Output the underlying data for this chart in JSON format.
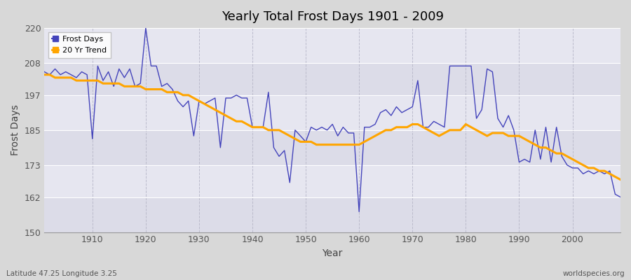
{
  "title": "Yearly Total Frost Days 1901 - 2009",
  "xlabel": "Year",
  "ylabel": "Frost Days",
  "lat_lon_label": "Latitude 47.25 Longitude 3.25",
  "watermark": "worldspecies.org",
  "years": [
    1901,
    1902,
    1903,
    1904,
    1905,
    1906,
    1907,
    1908,
    1909,
    1910,
    1911,
    1912,
    1913,
    1914,
    1915,
    1916,
    1917,
    1918,
    1919,
    1920,
    1921,
    1922,
    1923,
    1924,
    1925,
    1926,
    1927,
    1928,
    1929,
    1930,
    1931,
    1932,
    1933,
    1934,
    1935,
    1936,
    1937,
    1938,
    1939,
    1940,
    1941,
    1942,
    1943,
    1944,
    1945,
    1946,
    1947,
    1948,
    1949,
    1950,
    1951,
    1952,
    1953,
    1954,
    1955,
    1956,
    1957,
    1958,
    1959,
    1960,
    1961,
    1962,
    1963,
    1964,
    1965,
    1966,
    1967,
    1968,
    1969,
    1970,
    1971,
    1972,
    1973,
    1974,
    1975,
    1976,
    1977,
    1978,
    1979,
    1980,
    1981,
    1982,
    1983,
    1984,
    1985,
    1986,
    1987,
    1988,
    1989,
    1990,
    1991,
    1992,
    1993,
    1994,
    1995,
    1996,
    1997,
    1998,
    1999,
    2000,
    2001,
    2002,
    2003,
    2004,
    2005,
    2006,
    2007,
    2008,
    2009
  ],
  "frost_days": [
    205,
    204,
    206,
    204,
    205,
    204,
    203,
    205,
    204,
    182,
    207,
    202,
    205,
    200,
    206,
    203,
    206,
    200,
    201,
    220,
    207,
    207,
    200,
    201,
    199,
    195,
    193,
    195,
    183,
    195,
    194,
    195,
    196,
    179,
    196,
    196,
    197,
    196,
    196,
    186,
    186,
    186,
    198,
    179,
    176,
    178,
    167,
    185,
    183,
    181,
    186,
    185,
    186,
    185,
    187,
    183,
    186,
    184,
    184,
    157,
    186,
    186,
    187,
    191,
    192,
    190,
    193,
    191,
    192,
    193,
    202,
    186,
    186,
    188,
    187,
    186,
    207,
    207,
    207,
    207,
    207,
    189,
    192,
    206,
    205,
    189,
    186,
    190,
    185,
    174,
    175,
    174,
    185,
    175,
    186,
    174,
    186,
    176,
    173,
    172,
    172,
    170,
    171,
    170,
    171,
    170,
    171,
    163,
    162
  ],
  "trend_years": [
    1901,
    1902,
    1903,
    1904,
    1905,
    1906,
    1907,
    1908,
    1909,
    1910,
    1911,
    1912,
    1913,
    1914,
    1915,
    1916,
    1917,
    1918,
    1919,
    1920,
    1921,
    1922,
    1923,
    1924,
    1925,
    1926,
    1927,
    1928,
    1929,
    1930,
    1931,
    1932,
    1933,
    1934,
    1935,
    1936,
    1937,
    1938,
    1939,
    1940,
    1941,
    1942,
    1943,
    1944,
    1945,
    1946,
    1947,
    1948,
    1949,
    1950,
    1951,
    1952,
    1953,
    1954,
    1955,
    1956,
    1957,
    1958,
    1959,
    1960,
    1961,
    1962,
    1963,
    1964,
    1965,
    1966,
    1967,
    1968,
    1969,
    1970,
    1971,
    1972,
    1973,
    1974,
    1975,
    1976,
    1977,
    1978,
    1979,
    1980,
    1981,
    1982,
    1983,
    1984,
    1985,
    1986,
    1987,
    1988,
    1989,
    1990,
    1991,
    1992,
    1993,
    1994,
    1995,
    1996,
    1997,
    1998,
    1999,
    2000,
    2001,
    2002,
    2003,
    2004,
    2005,
    2006,
    2007,
    2008,
    2009
  ],
  "trend_values": [
    204,
    204,
    203,
    203,
    203,
    203,
    202,
    202,
    202,
    202,
    202,
    201,
    201,
    201,
    201,
    200,
    200,
    200,
    200,
    199,
    199,
    199,
    199,
    198,
    198,
    198,
    197,
    197,
    196,
    195,
    194,
    193,
    192,
    191,
    190,
    189,
    188,
    188,
    187,
    186,
    186,
    186,
    185,
    185,
    185,
    184,
    183,
    182,
    181,
    181,
    181,
    180,
    180,
    180,
    180,
    180,
    180,
    180,
    180,
    180,
    181,
    182,
    183,
    184,
    185,
    185,
    186,
    186,
    186,
    187,
    187,
    186,
    185,
    184,
    183,
    184,
    185,
    185,
    185,
    187,
    186,
    185,
    184,
    183,
    184,
    184,
    184,
    183,
    183,
    183,
    182,
    181,
    180,
    179,
    179,
    178,
    177,
    177,
    176,
    175,
    174,
    173,
    172,
    172,
    171,
    171,
    170,
    169,
    168
  ],
  "line_color": "#4444BB",
  "trend_color": "#FFA500",
  "bg_color": "#D8D8D8",
  "plot_bg_color_light": "#E0E0E8",
  "plot_bg_color_dark": "#D0D0DC",
  "grid_color_v": "#BBBBCC",
  "grid_color_h": "#FFFFFF",
  "ylim": [
    150,
    220
  ],
  "yticks": [
    150,
    162,
    173,
    185,
    197,
    208,
    220
  ],
  "band_edges": [
    150,
    162,
    173,
    185,
    197,
    208,
    220
  ],
  "xlim": [
    1901,
    2009
  ],
  "xticks": [
    1910,
    1920,
    1930,
    1940,
    1950,
    1960,
    1970,
    1980,
    1990,
    2000
  ]
}
